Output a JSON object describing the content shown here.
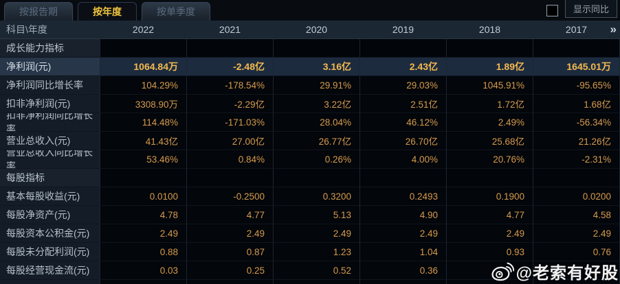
{
  "tabs": [
    {
      "label": "按报告期",
      "active": false
    },
    {
      "label": "按年度",
      "active": true
    },
    {
      "label": "按单季度",
      "active": false
    }
  ],
  "controls": {
    "compare_label": "显示同比",
    "compare_checkbox_checked": false
  },
  "icons": {
    "more_years": "»",
    "watermark_logo": "weibo-icon"
  },
  "table": {
    "corner_label": "科目\\年度",
    "years": [
      "2022",
      "2021",
      "2020",
      "2019",
      "2018",
      "2017"
    ],
    "rows": [
      {
        "type": "section",
        "label": "成长能力指标",
        "values": [
          "",
          "",
          "",
          "",
          "",
          ""
        ]
      },
      {
        "type": "data",
        "label": "净利润(元)",
        "highlight": true,
        "values": [
          "1064.84万",
          "-2.48亿",
          "3.16亿",
          "2.43亿",
          "1.89亿",
          "1645.01万"
        ]
      },
      {
        "type": "data",
        "label": "净利润同比增长率",
        "values": [
          "104.29%",
          "-178.54%",
          "29.91%",
          "29.03%",
          "1045.91%",
          "-95.65%"
        ]
      },
      {
        "type": "data",
        "label": "扣非净利润(元)",
        "values": [
          "3308.90万",
          "-2.29亿",
          "3.22亿",
          "2.51亿",
          "1.72亿",
          "1.68亿"
        ]
      },
      {
        "type": "data",
        "label": "扣非净利润同比增长率",
        "values": [
          "114.48%",
          "-171.03%",
          "28.04%",
          "46.12%",
          "2.49%",
          "-56.34%"
        ]
      },
      {
        "type": "data",
        "label": "营业总收入(元)",
        "values": [
          "41.43亿",
          "27.00亿",
          "26.77亿",
          "26.70亿",
          "25.68亿",
          "21.26亿"
        ]
      },
      {
        "type": "data",
        "label": "营业总收入同比增长率",
        "values": [
          "53.46%",
          "0.84%",
          "0.26%",
          "4.00%",
          "20.76%",
          "-2.31%"
        ]
      },
      {
        "type": "section",
        "label": "每股指标",
        "values": [
          "",
          "",
          "",
          "",
          "",
          ""
        ]
      },
      {
        "type": "data",
        "label": "基本每股收益(元)",
        "values": [
          "0.0100",
          "-0.2500",
          "0.3200",
          "0.2493",
          "0.1900",
          "0.0200"
        ]
      },
      {
        "type": "data",
        "label": "每股净资产(元)",
        "values": [
          "4.78",
          "4.77",
          "5.13",
          "4.90",
          "4.77",
          "4.58"
        ]
      },
      {
        "type": "data",
        "label": "每股资本公积金(元)",
        "values": [
          "2.49",
          "2.49",
          "2.49",
          "2.49",
          "2.49",
          "2.49"
        ]
      },
      {
        "type": "data",
        "label": "每股未分配利润(元)",
        "values": [
          "0.88",
          "0.87",
          "1.23",
          "1.04",
          "0.93",
          "0.76"
        ]
      },
      {
        "type": "data",
        "label": "每股经营现金流(元)",
        "values": [
          "0.03",
          "0.25",
          "0.52",
          "0.36",
          "",
          ""
        ]
      }
    ]
  },
  "watermark": {
    "text": "@老索有好股"
  },
  "colors": {
    "accent_gold": "#f0c53e",
    "value_amber": "#d69b4e",
    "highlight_value": "#f4ba4e",
    "highlight_row_bg": "#1d2b3f",
    "header_bg": "#1c2734",
    "label_col_bg": "#141d27",
    "value_cell_bg": "#03060a",
    "watermark_white": "#ffffff"
  }
}
